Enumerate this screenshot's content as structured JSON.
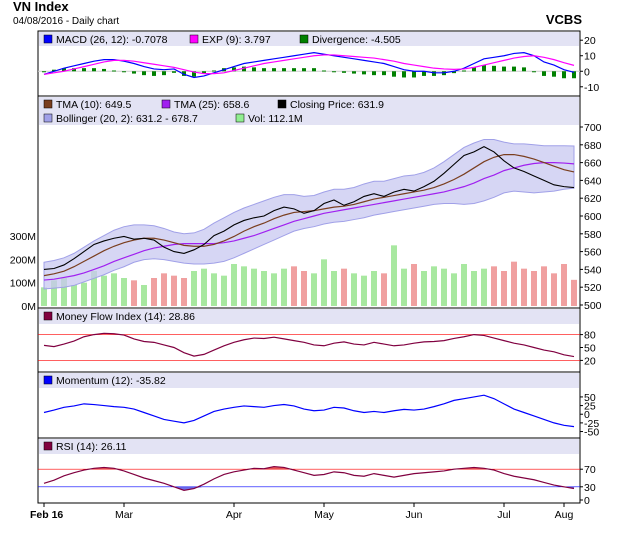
{
  "header": {
    "title": "VN Index",
    "subtitle": "04/08/2016 - Daily chart",
    "source": "VCBS"
  },
  "chart_data": [
    {
      "type": "line",
      "panel": "macd",
      "legend": [
        {
          "label": "MACD (26, 12): -0.7078",
          "color": "#0000ff"
        },
        {
          "label": "EXP (9): 3.797",
          "color": "#ff00ff"
        },
        {
          "label": "Divergence: -4.505",
          "color": "#008000"
        }
      ],
      "yticks": [
        "20",
        "10",
        "0",
        "-10"
      ],
      "ylim": [
        -14,
        24
      ],
      "series": [
        {
          "name": "MACD (26, 12)",
          "values": [
            -2,
            0,
            2,
            3.5,
            5,
            6.5,
            7.5,
            7.5,
            6.5,
            5,
            3,
            1.5,
            1,
            1.5,
            -2,
            -4,
            -3,
            -1,
            1,
            3,
            5,
            6,
            7,
            8,
            9,
            10,
            11,
            12,
            11,
            10,
            9,
            8,
            7,
            6,
            5,
            3,
            1,
            0,
            0,
            -1,
            -1,
            0,
            2,
            5,
            8,
            9,
            10,
            11.5,
            12,
            10,
            6,
            4,
            1,
            -0.7
          ]
        },
        {
          "name": "EXP (9)",
          "values": [
            -2,
            -1,
            0,
            1.5,
            3,
            4.5,
            6,
            7,
            7,
            6.5,
            5.5,
            4.5,
            3.5,
            2.5,
            1,
            -0.5,
            -1.5,
            -1.5,
            -1,
            0.5,
            2,
            3.5,
            5,
            6,
            7,
            8,
            9,
            10,
            10.5,
            10.5,
            10,
            9.5,
            9,
            8.5,
            7.5,
            6.5,
            5,
            4,
            3,
            2,
            1.5,
            1.2,
            1.5,
            2.5,
            4,
            5.5,
            7,
            8.5,
            9.5,
            10,
            9,
            7.5,
            5.5,
            3.8
          ]
        },
        {
          "name": "Divergence",
          "values": [
            0,
            1,
            2,
            2,
            2,
            2,
            1.5,
            0.5,
            -0.5,
            -1.5,
            -2.5,
            -3,
            -2.5,
            -1,
            -3,
            -3.5,
            -1.5,
            0.5,
            2,
            2.5,
            3,
            2.5,
            2,
            2,
            2,
            2,
            2,
            2,
            0.5,
            -0.5,
            -1,
            -1.5,
            -2,
            -2.5,
            -2.5,
            -3.5,
            -4,
            -4,
            -3,
            -3,
            -2.5,
            -1.2,
            0.5,
            2.5,
            4,
            3.5,
            3,
            3,
            2.5,
            0,
            -3,
            -3.5,
            -4.5,
            -4.5
          ]
        }
      ]
    },
    {
      "type": "line",
      "panel": "price",
      "legend": [
        {
          "label": "TMA (10): 649.5",
          "color": "#7a3e1e"
        },
        {
          "label": "TMA (25): 658.6",
          "color": "#a020f0"
        },
        {
          "label": "Closing Price: 631.9",
          "color": "#000000"
        },
        {
          "label": "Bollinger (20, 2): 631.2 - 678.7",
          "color": "#a0a0e8"
        },
        {
          "label": "Vol: 112.1M",
          "color": "#90ee90"
        }
      ],
      "yticks": [
        "700",
        "680",
        "660",
        "640",
        "620",
        "600",
        "580",
        "560",
        "540",
        "520",
        "500"
      ],
      "ylim": [
        500,
        700
      ],
      "volume_ticks": [
        "300M",
        "200M",
        "100M",
        "0M"
      ],
      "volume_lim": [
        0,
        300
      ],
      "series": [
        {
          "name": "Closing Price",
          "values": [
            540,
            541,
            545,
            552,
            560,
            568,
            572,
            575,
            577,
            574,
            575,
            573,
            565,
            560,
            558,
            562,
            568,
            578,
            583,
            590,
            595,
            598,
            600,
            606,
            610,
            608,
            603,
            606,
            614,
            618,
            612,
            616,
            622,
            625,
            622,
            627,
            630,
            628,
            633,
            639,
            648,
            658,
            668,
            672,
            678,
            672,
            662,
            654,
            650,
            645,
            640,
            635,
            633,
            631.9
          ]
        },
        {
          "name": "TMA (10)",
          "values": [
            533,
            535,
            538,
            543,
            549,
            555,
            561,
            566,
            570,
            573,
            575,
            575,
            573,
            570,
            567,
            566,
            566,
            568,
            572,
            577,
            583,
            588,
            592,
            597,
            601,
            604,
            605,
            606,
            608,
            610,
            611,
            613,
            616,
            619,
            621,
            623,
            625,
            627,
            629,
            632,
            636,
            641,
            647,
            654,
            661,
            666,
            669,
            669,
            667,
            664,
            660,
            656,
            652,
            649.5
          ]
        },
        {
          "name": "TMA (25)",
          "values": [
            528,
            529,
            531,
            533,
            536,
            540,
            544,
            549,
            553,
            557,
            561,
            564,
            566,
            568,
            569,
            569,
            569,
            569,
            570,
            572,
            575,
            578,
            582,
            586,
            590,
            594,
            597,
            600,
            603,
            605,
            607,
            609,
            611,
            613,
            615,
            617,
            619,
            621,
            623,
            625,
            627,
            630,
            633,
            637,
            642,
            646,
            651,
            654,
            657,
            659,
            660,
            660,
            659.5,
            658.6
          ]
        },
        {
          "name": "Bollinger upper",
          "values": [
            548,
            550,
            553,
            558,
            565,
            572,
            578,
            584,
            588,
            590,
            590,
            589,
            586,
            582,
            580,
            581,
            585,
            592,
            598,
            604,
            609,
            613,
            617,
            621,
            624,
            624,
            622,
            623,
            627,
            630,
            630,
            632,
            636,
            639,
            639,
            642,
            645,
            646,
            649,
            654,
            661,
            669,
            677,
            682,
            686,
            686,
            683,
            681,
            681,
            680,
            679,
            679,
            679,
            678.7
          ]
        },
        {
          "name": "Bollinger lower",
          "values": [
            518,
            519,
            520,
            522,
            526,
            530,
            534,
            539,
            543,
            548,
            551,
            552,
            551,
            549,
            547,
            546,
            546,
            547,
            549,
            553,
            558,
            563,
            568,
            573,
            578,
            583,
            586,
            588,
            591,
            593,
            594,
            596,
            598,
            601,
            603,
            605,
            607,
            609,
            611,
            613,
            614,
            614,
            613,
            614,
            617,
            621,
            626,
            628,
            627,
            626,
            627,
            628,
            630,
            631.2
          ]
        },
        {
          "name": "Vol",
          "values": [
            80,
            110,
            120,
            90,
            100,
            150,
            130,
            140,
            120,
            110,
            90,
            120,
            140,
            130,
            120,
            150,
            160,
            140,
            130,
            180,
            170,
            160,
            150,
            140,
            160,
            170,
            150,
            140,
            200,
            150,
            160,
            140,
            130,
            150,
            140,
            260,
            160,
            180,
            150,
            170,
            160,
            140,
            180,
            150,
            160,
            170,
            150,
            190,
            160,
            150,
            170,
            140,
            180,
            112.1
          ]
        }
      ]
    },
    {
      "type": "line",
      "panel": "mfi",
      "legend": [
        {
          "label": "Money Flow Index (14): 28.86",
          "color": "#800040"
        }
      ],
      "yticks": [
        "80",
        "50",
        "20"
      ],
      "ylim": [
        0,
        100
      ],
      "series": [
        {
          "name": "Money Flow Index (14)",
          "values": [
            55,
            52,
            58,
            65,
            75,
            80,
            83,
            82,
            79,
            70,
            64,
            62,
            56,
            50,
            38,
            30,
            34,
            44,
            54,
            62,
            68,
            72,
            71,
            74,
            70,
            66,
            62,
            56,
            54,
            60,
            63,
            58,
            56,
            62,
            58,
            54,
            56,
            60,
            63,
            64,
            66,
            71,
            75,
            80,
            78,
            72,
            66,
            60,
            56,
            50,
            44,
            40,
            33,
            28.86
          ]
        }
      ]
    },
    {
      "type": "line",
      "panel": "momentum",
      "legend": [
        {
          "label": "Momentum (12): -35.82",
          "color": "#0000ff"
        }
      ],
      "yticks": [
        "50",
        "25",
        "0",
        "-25",
        "-50"
      ],
      "ylim": [
        -60,
        70
      ],
      "series": [
        {
          "name": "Momentum (12)",
          "values": [
            5,
            12,
            20,
            24,
            30,
            28,
            25,
            22,
            20,
            15,
            5,
            -5,
            -15,
            -20,
            -25,
            -18,
            -5,
            8,
            15,
            20,
            24,
            22,
            20,
            25,
            28,
            24,
            15,
            10,
            12,
            20,
            18,
            10,
            5,
            8,
            5,
            10,
            14,
            12,
            15,
            22,
            30,
            40,
            45,
            50,
            55,
            45,
            30,
            15,
            5,
            -5,
            -15,
            -25,
            -32,
            -35.82
          ]
        }
      ]
    },
    {
      "type": "area",
      "panel": "rsi",
      "legend": [
        {
          "label": "RSI (14): 26.11",
          "color": "#800040"
        }
      ],
      "yticks": [
        "70",
        "30",
        "0"
      ],
      "ylim": [
        0,
        100
      ],
      "series": [
        {
          "name": "RSI (14)",
          "values": [
            38,
            45,
            55,
            62,
            68,
            72,
            74,
            72,
            66,
            58,
            50,
            44,
            38,
            30,
            22,
            26,
            36,
            48,
            58,
            64,
            68,
            72,
            71,
            76,
            74,
            68,
            62,
            56,
            58,
            64,
            62,
            56,
            54,
            60,
            56,
            52,
            56,
            60,
            62,
            64,
            66,
            70,
            72,
            74,
            72,
            68,
            60,
            54,
            50,
            46,
            40,
            34,
            30,
            26.11
          ]
        }
      ]
    }
  ],
  "x_axis": {
    "ticks": [
      {
        "label": "Feb 16",
        "idx": 0
      },
      {
        "label": "Mar",
        "idx": 8
      },
      {
        "label": "Apr",
        "idx": 19
      },
      {
        "label": "May",
        "idx": 28
      },
      {
        "label": "Jun",
        "idx": 37
      },
      {
        "label": "Jul",
        "idx": 46
      },
      {
        "label": "Aug",
        "idx": 52
      }
    ]
  }
}
